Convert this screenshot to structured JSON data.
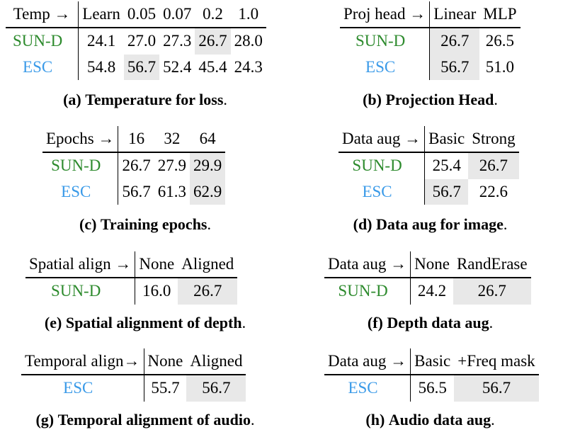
{
  "colors": {
    "sun_d": "#2e8b2e",
    "esc": "#3a9ae8",
    "highlight": "#e8e8e8"
  },
  "panels": {
    "a": {
      "header": [
        "Temp →",
        "Learn",
        "0.05",
        "0.07",
        "0.2",
        "1.0"
      ],
      "rows": [
        {
          "label": "SUN-D",
          "values": [
            "24.1",
            "27.0",
            "27.3",
            "26.7",
            "28.0"
          ]
        },
        {
          "label": "ESC",
          "values": [
            "54.8",
            "56.7",
            "52.4",
            "45.4",
            "24.3"
          ]
        }
      ],
      "caption_tag": "(a)",
      "caption_title": "Temperature for loss",
      "caption_end": "."
    },
    "b": {
      "header": [
        "Proj head →",
        "Linear",
        "MLP"
      ],
      "rows": [
        {
          "label": "SUN-D",
          "values": [
            "26.7",
            "26.5"
          ]
        },
        {
          "label": "ESC",
          "values": [
            "56.7",
            "51.0"
          ]
        }
      ],
      "caption_tag": "(b)",
      "caption_title": "Projection Head",
      "caption_end": "."
    },
    "c": {
      "header": [
        "Epochs →",
        "16",
        "32",
        "64"
      ],
      "rows": [
        {
          "label": "SUN-D",
          "values": [
            "26.7",
            "27.9",
            "29.9"
          ]
        },
        {
          "label": "ESC",
          "values": [
            "56.7",
            "61.3",
            "62.9"
          ]
        }
      ],
      "caption_tag": "(c)",
      "caption_title": "Training epochs",
      "caption_end": "."
    },
    "d": {
      "header": [
        "Data aug →",
        "Basic",
        "Strong"
      ],
      "rows": [
        {
          "label": "SUN-D",
          "values": [
            "25.4",
            "26.7"
          ]
        },
        {
          "label": "ESC",
          "values": [
            "56.7",
            "22.6"
          ]
        }
      ],
      "caption_tag": "(d)",
      "caption_title": "Data aug for image",
      "caption_end": "."
    },
    "e": {
      "header": [
        "Spatial align →",
        "None",
        "Aligned"
      ],
      "rows": [
        {
          "label": "SUN-D",
          "values": [
            "16.0",
            "26.7"
          ]
        }
      ],
      "caption_tag": "(e)",
      "caption_title": "Spatial alignment of depth",
      "caption_end": "."
    },
    "f": {
      "header": [
        "Data aug →",
        "None",
        "RandErase"
      ],
      "rows": [
        {
          "label": "SUN-D",
          "values": [
            "24.2",
            "26.7"
          ]
        }
      ],
      "caption_tag": "(f)",
      "caption_title": "Depth data aug",
      "caption_end": "."
    },
    "g": {
      "header": [
        "Temporal align→",
        "None",
        "Aligned"
      ],
      "rows": [
        {
          "label": "ESC",
          "values": [
            "55.7",
            "56.7"
          ]
        }
      ],
      "caption_tag": "(g)",
      "caption_title": "Temporal alignment of audio",
      "caption_end": "."
    },
    "h": {
      "header": [
        "Data aug →",
        "Basic",
        "+Freq mask"
      ],
      "rows": [
        {
          "label": "ESC",
          "values": [
            "56.5",
            "56.7"
          ]
        }
      ],
      "caption_tag": "(h)",
      "caption_title": "Audio data aug",
      "caption_end": "."
    }
  }
}
